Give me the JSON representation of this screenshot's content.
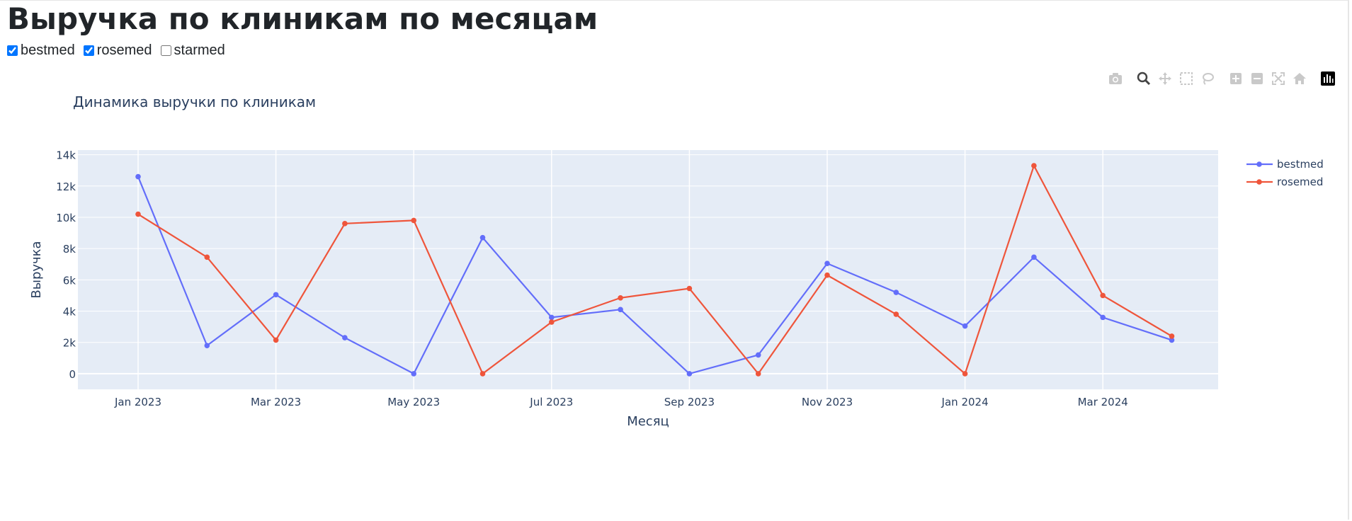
{
  "page": {
    "title": "Выручка по клиникам по месяцам"
  },
  "filters": [
    {
      "label": "bestmed",
      "checked": true
    },
    {
      "label": "rosemed",
      "checked": true
    },
    {
      "label": "starmed",
      "checked": false
    }
  ],
  "modebar": {
    "icons": [
      "camera-icon",
      "zoom-icon",
      "pan-icon",
      "box-select-icon",
      "lasso-icon",
      "zoom-in-icon",
      "zoom-out-icon",
      "autoscale-icon",
      "reset-axes-icon",
      "plotly-logo-icon"
    ]
  },
  "chart_data": {
    "type": "line",
    "title": "Динамика выручки по клиникам",
    "xlabel": "Месяц",
    "ylabel": "Выручка",
    "x": [
      "2023-01",
      "2023-02",
      "2023-03",
      "2023-04",
      "2023-05",
      "2023-06",
      "2023-07",
      "2023-08",
      "2023-09",
      "2023-10",
      "2023-11",
      "2023-12",
      "2024-01",
      "2024-02",
      "2024-03",
      "2024-04"
    ],
    "x_tick_labels": [
      "Jan 2023",
      "Mar 2023",
      "May 2023",
      "Jul 2023",
      "Sep 2023",
      "Nov 2023",
      "Jan 2024",
      "Mar 2024"
    ],
    "y_tick_labels": [
      "0",
      "2k",
      "4k",
      "6k",
      "8k",
      "10k",
      "12k",
      "14k"
    ],
    "y_ticks": [
      0,
      2000,
      4000,
      6000,
      8000,
      10000,
      12000,
      14000
    ],
    "ylim": [
      -1000,
      14300
    ],
    "grid": true,
    "legend_position": "top-right",
    "series": [
      {
        "name": "bestmed",
        "color": "#636efa",
        "values": [
          12600,
          1800,
          5050,
          2300,
          0,
          8700,
          3600,
          4100,
          0,
          1200,
          7050,
          5200,
          3050,
          7450,
          3600,
          2150
        ]
      },
      {
        "name": "rosemed",
        "color": "#ef553b",
        "values": [
          10200,
          7450,
          2150,
          9600,
          9800,
          0,
          3300,
          4850,
          5450,
          0,
          6300,
          3800,
          0,
          13300,
          5000,
          2400
        ]
      }
    ]
  }
}
